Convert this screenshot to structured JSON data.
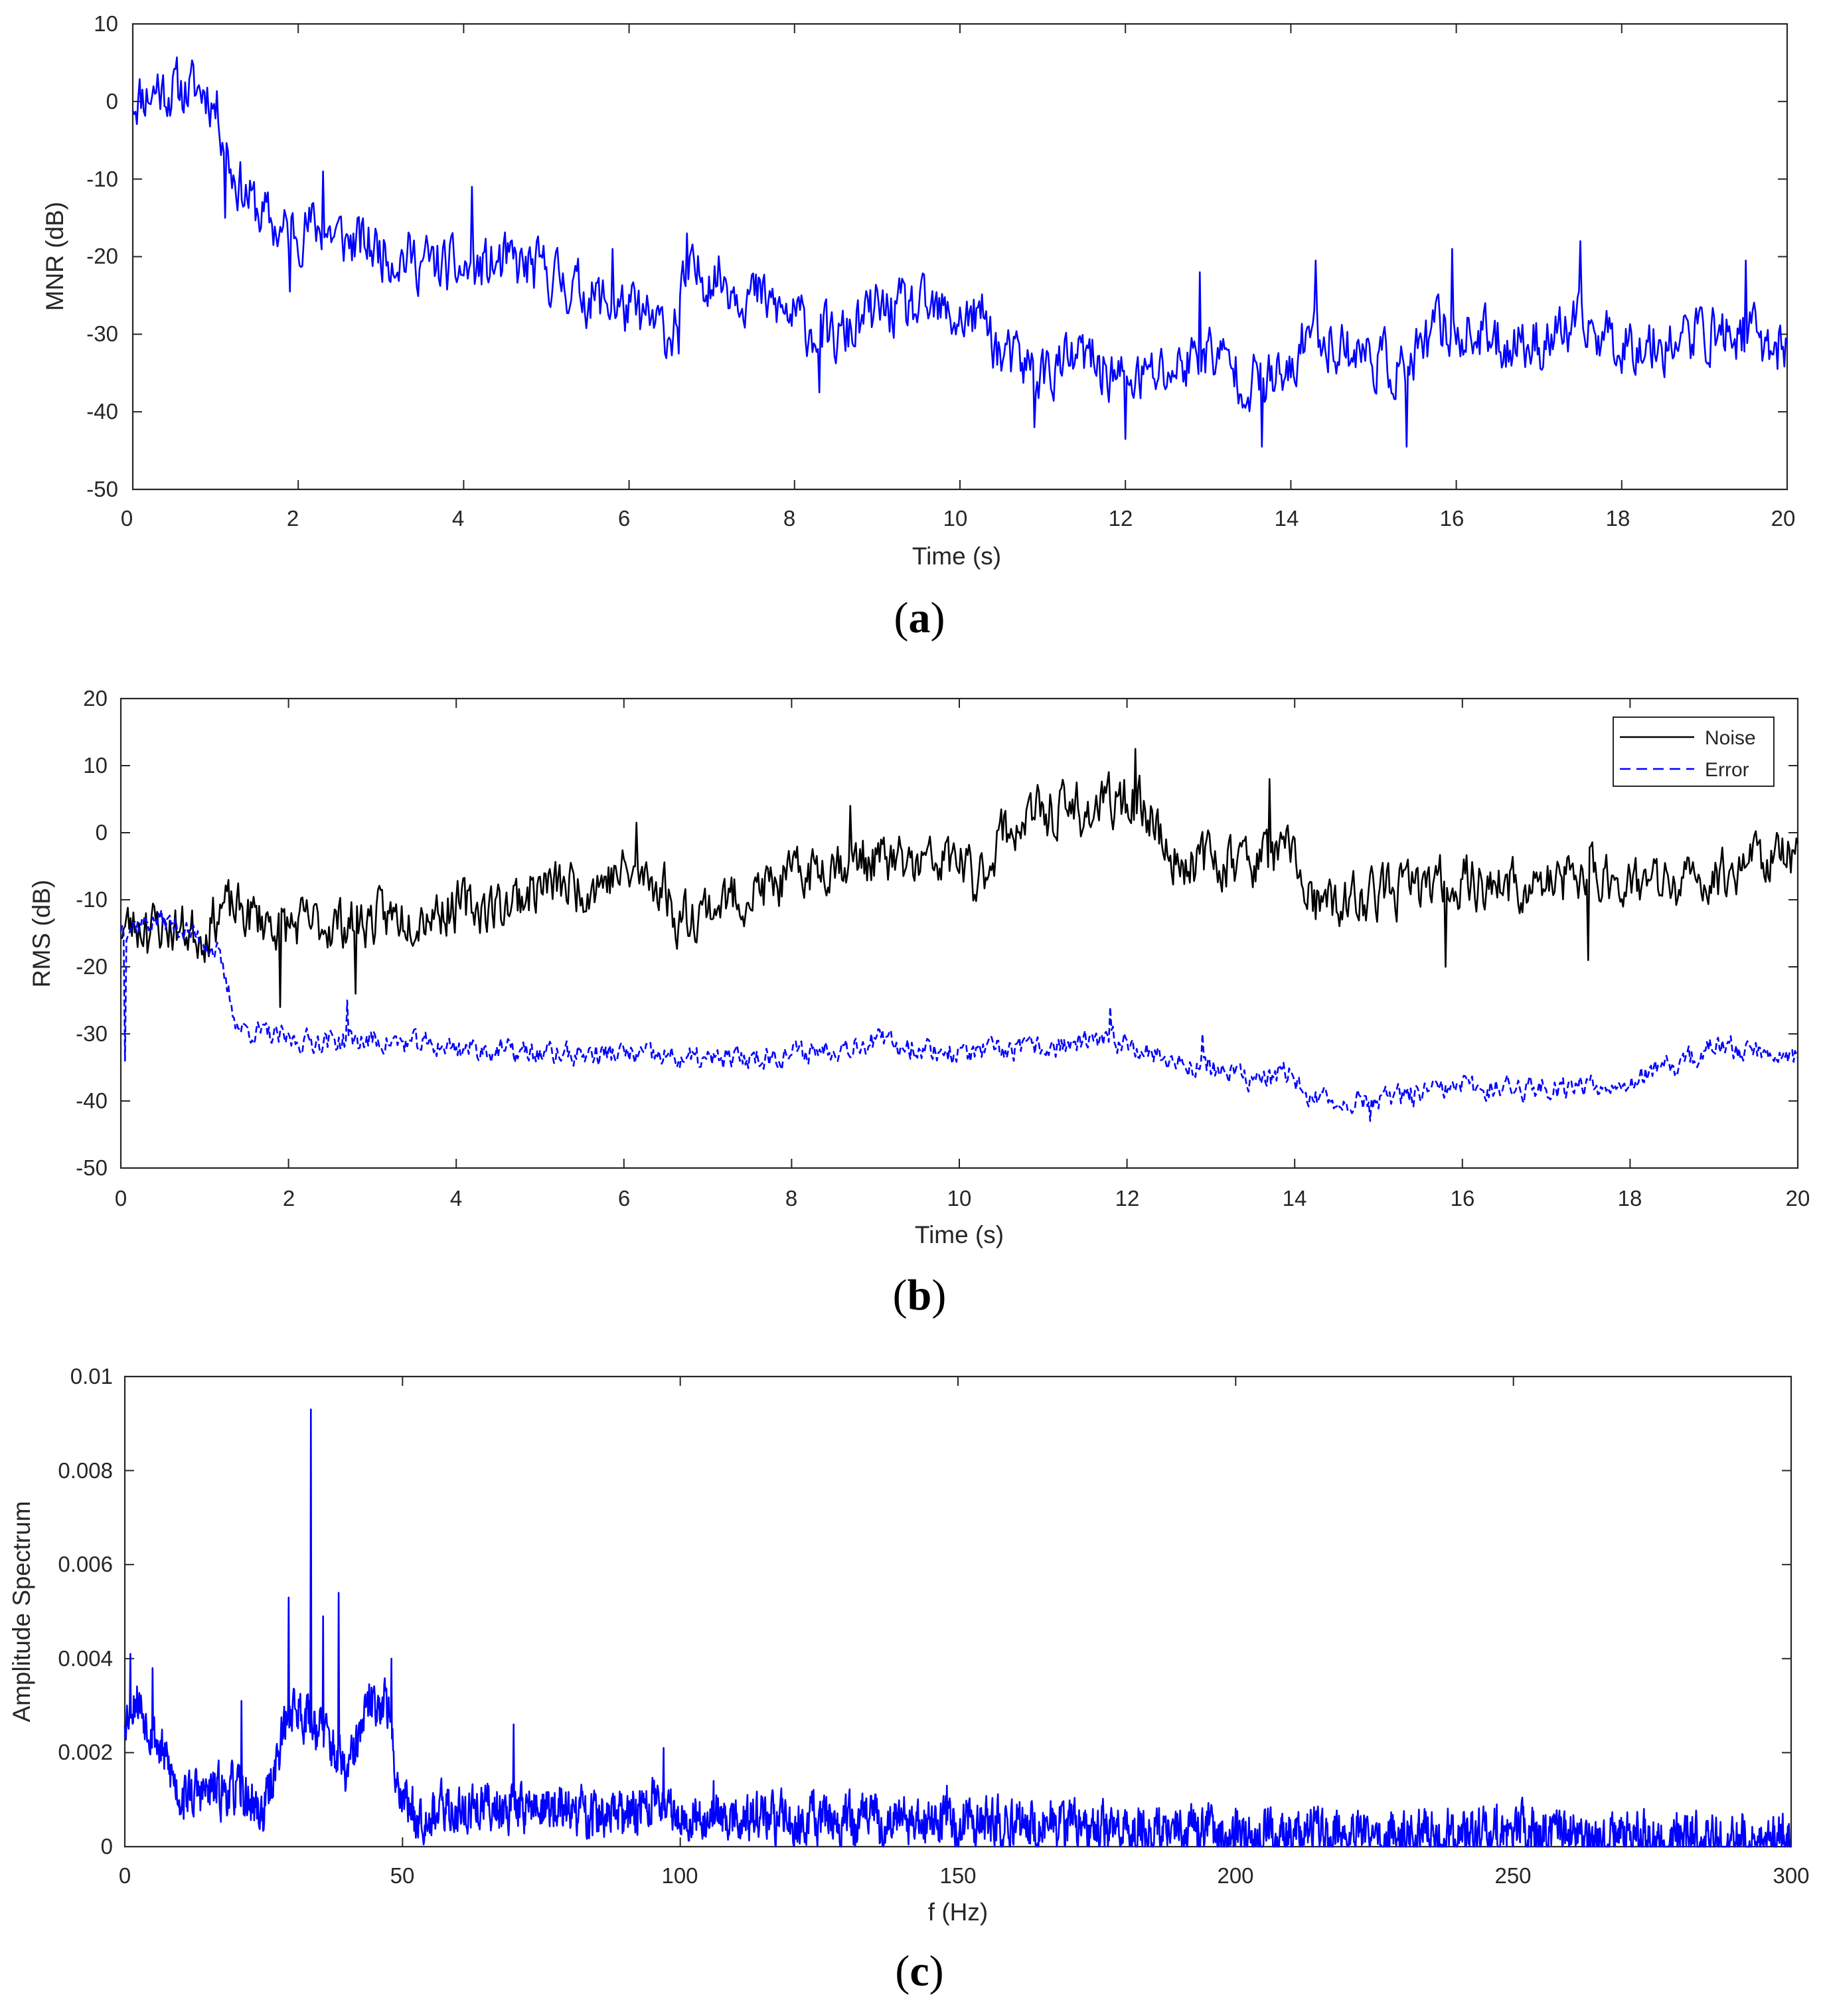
{
  "chart_data": [
    {
      "id": "a",
      "type": "line",
      "caption": {
        "open": "(",
        "letter": "a",
        "close": ")"
      },
      "xlabel": "Time (s)",
      "ylabel": "MNR (dB)",
      "xlim": [
        0,
        20
      ],
      "ylim": [
        -50,
        10
      ],
      "xticks": [
        "0",
        "2",
        "4",
        "6",
        "8",
        "10",
        "12",
        "14",
        "16",
        "18",
        "20"
      ],
      "yticks": [
        "10",
        "0",
        "-10",
        "-20",
        "-30",
        "-40",
        "-50"
      ],
      "grid": false,
      "legend": null,
      "series": [
        {
          "name": "MNR",
          "color": "#0000ff",
          "style": "solid",
          "samples_per_second": 60,
          "noise_amplitude": 3.2,
          "seed": 11,
          "trend": [
            [
              0,
              0.5
            ],
            [
              0.3,
              1.5
            ],
            [
              0.9,
              1.5
            ],
            [
              1.05,
              -2
            ],
            [
              1.2,
              -9
            ],
            [
              1.5,
              -14
            ],
            [
              1.8,
              -17
            ],
            [
              2.2,
              -16
            ],
            [
              2.6,
              -18
            ],
            [
              3,
              -19
            ],
            [
              3.6,
              -21
            ],
            [
              4,
              -22
            ],
            [
              4.5,
              -21
            ],
            [
              5,
              -22
            ],
            [
              5.5,
              -25
            ],
            [
              6,
              -27
            ],
            [
              6.5,
              -30
            ],
            [
              6.7,
              -23
            ],
            [
              7,
              -22
            ],
            [
              7.5,
              -25
            ],
            [
              8,
              -28
            ],
            [
              8.5,
              -31
            ],
            [
              9,
              -27
            ],
            [
              9.5,
              -27
            ],
            [
              10,
              -28
            ],
            [
              10.3,
              -28
            ],
            [
              10.5,
              -33
            ],
            [
              11,
              -35
            ],
            [
              11.5,
              -33
            ],
            [
              12,
              -36
            ],
            [
              12.5,
              -35
            ],
            [
              13,
              -32
            ],
            [
              13.5,
              -36
            ],
            [
              14,
              -36
            ],
            [
              14.2,
              -29
            ],
            [
              14.5,
              -31
            ],
            [
              15,
              -33
            ],
            [
              15.4,
              -35
            ],
            [
              15.8,
              -29
            ],
            [
              16.5,
              -31
            ],
            [
              17,
              -31
            ],
            [
              17.5,
              -29
            ],
            [
              18,
              -31
            ],
            [
              18.5,
              -31
            ],
            [
              19,
              -30
            ],
            [
              19.5,
              -30
            ],
            [
              20,
              -32
            ]
          ],
          "spikes": [
            [
              0.3,
              3.5
            ],
            [
              1.12,
              -15
            ],
            [
              1.9,
              -24.5
            ],
            [
              2.3,
              -9
            ],
            [
              4.1,
              -11
            ],
            [
              5.8,
              -19
            ],
            [
              6.6,
              -32.5
            ],
            [
              6.7,
              -17
            ],
            [
              8.3,
              -37.5
            ],
            [
              10.9,
              -42
            ],
            [
              12.0,
              -43.5
            ],
            [
              12.9,
              -22
            ],
            [
              13.65,
              -44.5
            ],
            [
              14.3,
              -20.5
            ],
            [
              15.4,
              -44.5
            ],
            [
              15.95,
              -19
            ],
            [
              17.5,
              -18
            ],
            [
              19.5,
              -20.5
            ]
          ]
        }
      ]
    },
    {
      "id": "b",
      "type": "line",
      "caption": {
        "open": "(",
        "letter": "b",
        "close": ")"
      },
      "xlabel": "Time (s)",
      "ylabel": "RMS (dB)",
      "xlim": [
        0,
        20
      ],
      "ylim": [
        -50,
        20
      ],
      "xticks": [
        "0",
        "2",
        "4",
        "6",
        "8",
        "10",
        "12",
        "14",
        "16",
        "18",
        "20"
      ],
      "yticks": [
        "20",
        "10",
        "0",
        "-10",
        "-20",
        "-30",
        "-40",
        "-50"
      ],
      "grid": false,
      "legend": {
        "position": "top-right",
        "entries": [
          "Noise",
          "Error"
        ]
      },
      "series": [
        {
          "name": "Noise",
          "color": "#000000",
          "style": "solid",
          "samples_per_second": 60,
          "noise_amplitude": 3.4,
          "seed": 23,
          "trend": [
            [
              0,
              -14
            ],
            [
              0.5,
              -14
            ],
            [
              1,
              -15
            ],
            [
              1.2,
              -11
            ],
            [
              2,
              -14
            ],
            [
              3,
              -13
            ],
            [
              4,
              -11
            ],
            [
              4.5,
              -11
            ],
            [
              5,
              -8
            ],
            [
              5.5,
              -8
            ],
            [
              6,
              -6
            ],
            [
              6.5,
              -8
            ],
            [
              6.6,
              -13
            ],
            [
              7,
              -11
            ],
            [
              7.5,
              -9
            ],
            [
              8,
              -7
            ],
            [
              8.5,
              -4
            ],
            [
              9,
              -4
            ],
            [
              9.5,
              -5
            ],
            [
              10,
              -4
            ],
            [
              10.2,
              -8
            ],
            [
              10.5,
              0
            ],
            [
              11,
              3
            ],
            [
              11.5,
              3
            ],
            [
              12,
              5
            ],
            [
              12.3,
              3
            ],
            [
              12.5,
              -4
            ],
            [
              13,
              -4
            ],
            [
              13.5,
              -4
            ],
            [
              14,
              -3
            ],
            [
              14.2,
              -11
            ],
            [
              14.5,
              -11
            ],
            [
              15,
              -9
            ],
            [
              15.5,
              -8
            ],
            [
              16,
              -7
            ],
            [
              16.5,
              -8
            ],
            [
              17,
              -8
            ],
            [
              17.5,
              -6
            ],
            [
              18,
              -7
            ],
            [
              18.5,
              -8
            ],
            [
              19,
              -7
            ],
            [
              19.5,
              -3
            ],
            [
              20,
              -4
            ]
          ],
          "spikes": [
            [
              0.3,
              -12
            ],
            [
              1.9,
              -26
            ],
            [
              2.8,
              -24
            ],
            [
              6.15,
              1.5
            ],
            [
              8.7,
              4
            ],
            [
              11.4,
              7.5
            ],
            [
              12.1,
              12.5
            ],
            [
              13.7,
              8
            ],
            [
              15.8,
              -20
            ],
            [
              17.5,
              -19
            ]
          ]
        },
        {
          "name": "Error",
          "color": "#0000ff",
          "style": "dashed",
          "samples_per_second": 60,
          "noise_amplitude": 1.5,
          "seed": 37,
          "trend": [
            [
              0,
              -14
            ],
            [
              0.5,
              -13
            ],
            [
              1,
              -16
            ],
            [
              1.15,
              -18
            ],
            [
              1.4,
              -29
            ],
            [
              2,
              -31
            ],
            [
              3,
              -31
            ],
            [
              4,
              -32
            ],
            [
              5,
              -33
            ],
            [
              6,
              -33
            ],
            [
              7,
              -34
            ],
            [
              8,
              -33
            ],
            [
              9,
              -31
            ],
            [
              10,
              -33
            ],
            [
              11,
              -32
            ],
            [
              12,
              -31
            ],
            [
              12.5,
              -34
            ],
            [
              13,
              -35
            ],
            [
              13.5,
              -37
            ],
            [
              14,
              -36
            ],
            [
              14.2,
              -40
            ],
            [
              15,
              -40
            ],
            [
              16,
              -38
            ],
            [
              17,
              -38
            ],
            [
              18,
              -37
            ],
            [
              18.5,
              -35
            ],
            [
              19,
              -32
            ],
            [
              20,
              -33
            ]
          ],
          "spikes": [
            [
              0.05,
              -34
            ],
            [
              2.7,
              -25
            ],
            [
              11.8,
              -26
            ],
            [
              12.9,
              -30
            ],
            [
              14.9,
              -43
            ]
          ]
        }
      ]
    },
    {
      "id": "c",
      "type": "line",
      "caption": {
        "open": "(",
        "letter": "c",
        "close": ")"
      },
      "xlabel": "f (Hz)",
      "ylabel": "Amplitude Spectrum",
      "xlim": [
        0,
        300
      ],
      "ylim": [
        0,
        0.01
      ],
      "xticks": [
        "0",
        "50",
        "100",
        "150",
        "200",
        "250",
        "300"
      ],
      "yticks": [
        "0.01",
        "0.008",
        "0.006",
        "0.004",
        "0.002",
        "0"
      ],
      "grid": false,
      "legend": null,
      "series": [
        {
          "name": "Amplitude",
          "color": "#0000ff",
          "style": "solid",
          "samples_per_unit": 10,
          "noise_amplitude": 0.00045,
          "seed": 53,
          "trend": [
            [
              0,
              0.0028
            ],
            [
              2,
              0.0032
            ],
            [
              6,
              0.0022
            ],
            [
              10,
              0.0011
            ],
            [
              20,
              0.0012
            ],
            [
              25,
              0.0007
            ],
            [
              28,
              0.0022
            ],
            [
              30,
              0.003
            ],
            [
              33,
              0.0028
            ],
            [
              36,
              0.0024
            ],
            [
              40,
              0.0015
            ],
            [
              44,
              0.003
            ],
            [
              47,
              0.0032
            ],
            [
              49,
              0.0014
            ],
            [
              52,
              0.0007
            ],
            [
              70,
              0.0009
            ],
            [
              90,
              0.0006
            ],
            [
              95,
              0.001
            ],
            [
              100,
              0.0007
            ],
            [
              110,
              0.0006
            ],
            [
              150,
              0.0005
            ],
            [
              200,
              0.0003
            ],
            [
              250,
              0.0003
            ],
            [
              300,
              0.00015
            ]
          ],
          "spikes": [
            [
              1,
              0.0041
            ],
            [
              5,
              0.0038
            ],
            [
              21,
              0.0031
            ],
            [
              29.5,
              0.0053
            ],
            [
              33.5,
              0.0093
            ],
            [
              35.7,
              0.0049
            ],
            [
              38.5,
              0.0054
            ],
            [
              48,
              0.004
            ],
            [
              70,
              0.0026
            ],
            [
              97,
              0.0021
            ],
            [
              106,
              0.0014
            ],
            [
              148,
              0.0013
            ],
            [
              247,
              0.0009
            ]
          ]
        }
      ]
    }
  ]
}
